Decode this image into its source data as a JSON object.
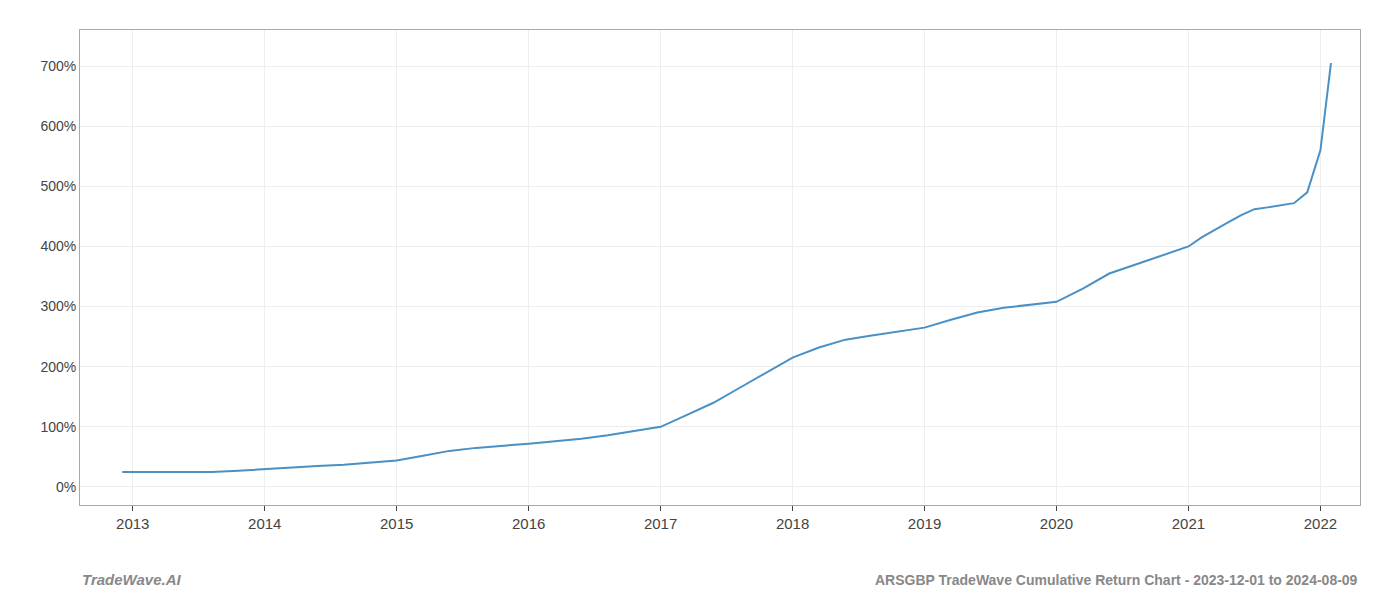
{
  "chart_data": {
    "type": "line",
    "title": "ARSGBP TradeWave Cumulative Return Chart - 2023-12-01 to 2024-08-09",
    "annotations": [
      "TradeWave.AI"
    ],
    "x": [
      2012.92,
      2013.0,
      2013.2,
      2013.4,
      2013.6,
      2013.8,
      2014.0,
      2014.2,
      2014.4,
      2014.6,
      2014.8,
      2015.0,
      2015.2,
      2015.4,
      2015.6,
      2015.8,
      2016.0,
      2016.2,
      2016.4,
      2016.6,
      2016.8,
      2017.0,
      2017.2,
      2017.4,
      2017.6,
      2017.8,
      2018.0,
      2018.2,
      2018.4,
      2018.6,
      2018.8,
      2019.0,
      2019.2,
      2019.4,
      2019.6,
      2019.8,
      2020.0,
      2020.2,
      2020.4,
      2020.6,
      2020.8,
      2021.0,
      2021.1,
      2021.2,
      2021.3,
      2021.4,
      2021.5,
      2021.6,
      2021.7,
      2021.8,
      2021.9,
      2022.0,
      2022.08
    ],
    "values": [
      25,
      25,
      24,
      24,
      25,
      27,
      30,
      33,
      35,
      37,
      40,
      44,
      52,
      60,
      65,
      68,
      72,
      76,
      80,
      86,
      93,
      100,
      120,
      140,
      165,
      190,
      215,
      232,
      245,
      252,
      258,
      265,
      278,
      290,
      298,
      303,
      308,
      330,
      355,
      370,
      385,
      400,
      415,
      428,
      440,
      452,
      462,
      465,
      468,
      472,
      490,
      560,
      705
    ],
    "color": "#4a90c4",
    "xlim": [
      2012.6,
      2022.3
    ],
    "ylim": [
      -30,
      760
    ],
    "xticks": [
      2013,
      2014,
      2015,
      2016,
      2017,
      2018,
      2019,
      2020,
      2021,
      2022
    ],
    "yticks": [
      {
        "value": 0,
        "label": "0%"
      },
      {
        "value": 100,
        "label": "100%"
      },
      {
        "value": 200,
        "label": "200%"
      },
      {
        "value": 300,
        "label": "300%"
      },
      {
        "value": 400,
        "label": "400%"
      },
      {
        "value": 500,
        "label": "500%"
      },
      {
        "value": 600,
        "label": "600%"
      },
      {
        "value": 700,
        "label": "700%"
      }
    ],
    "grid": true
  }
}
